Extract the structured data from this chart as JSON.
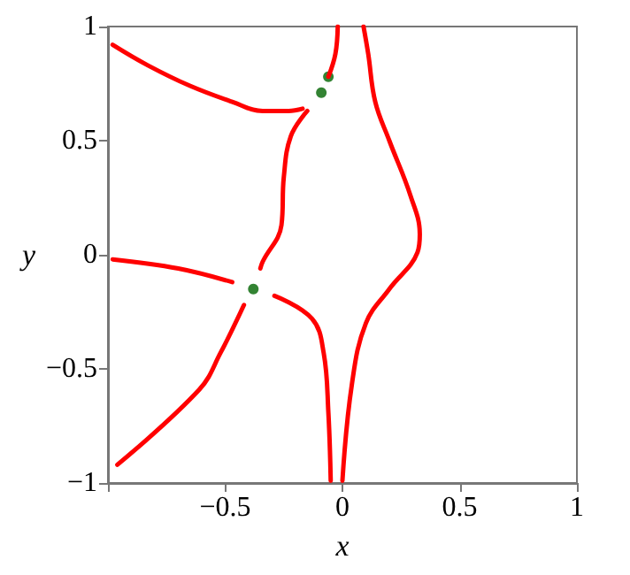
{
  "chart_data": {
    "type": "line",
    "xlabel": "x",
    "ylabel": "y",
    "xlim": [
      -1,
      1
    ],
    "ylim": [
      -1,
      1
    ],
    "xticks": [
      {
        "value": -1,
        "label": null
      },
      -0.5,
      0,
      0.5,
      1
    ],
    "yticks": [
      -1,
      -0.5,
      0,
      0.5,
      1
    ],
    "marker": "none",
    "line_style": "solid",
    "series": [
      {
        "color": "#ff0000",
        "x": [
          -0.98,
          -0.83,
          -0.65,
          -0.47,
          -0.34,
          -0.23,
          -0.17
        ],
        "values": [
          0.92,
          0.83,
          0.74,
          0.67,
          0.63,
          0.63,
          0.64
        ]
      },
      {
        "color": "#ff0000",
        "x": [
          -0.15,
          -0.22,
          -0.25,
          -0.26,
          -0.34,
          -0.35
        ],
        "values": [
          0.63,
          0.52,
          0.34,
          0.13,
          -0.03,
          -0.06
        ]
      },
      {
        "color": "#ff0000",
        "x": [
          -0.42,
          -0.52,
          -0.61,
          -0.96
        ],
        "values": [
          -0.22,
          -0.43,
          -0.59,
          -0.92
        ]
      },
      {
        "color": "#ff0000",
        "x": [
          -0.98,
          -0.7,
          -0.47
        ],
        "values": [
          -0.02,
          -0.06,
          -0.12
        ]
      },
      {
        "color": "#ff0000",
        "x": [
          -0.29,
          -0.13,
          -0.08,
          -0.06,
          -0.05
        ],
        "values": [
          -0.18,
          -0.28,
          -0.43,
          -0.69,
          -0.99
        ]
      },
      {
        "color": "#ff0000",
        "x": [
          0,
          0.04,
          0.1,
          0.2,
          0.32,
          0.33,
          0.29,
          0.2,
          0.14,
          0.11,
          0.09
        ],
        "values": [
          -0.99,
          -0.57,
          -0.3,
          -0.15,
          0.01,
          0.09,
          0.26,
          0.5,
          0.67,
          0.88,
          1
        ]
      },
      {
        "color": "#ff0000",
        "x": [
          -0.06,
          -0.03,
          -0.02
        ],
        "values": [
          0.78,
          0.88,
          1
        ]
      },
      {
        "type": "scatter",
        "marker": "circle",
        "color": "#006400",
        "x": [
          -0.38,
          -0.06,
          -0.09
        ],
        "values": [
          -0.15,
          0.78,
          0.71
        ]
      }
    ]
  }
}
